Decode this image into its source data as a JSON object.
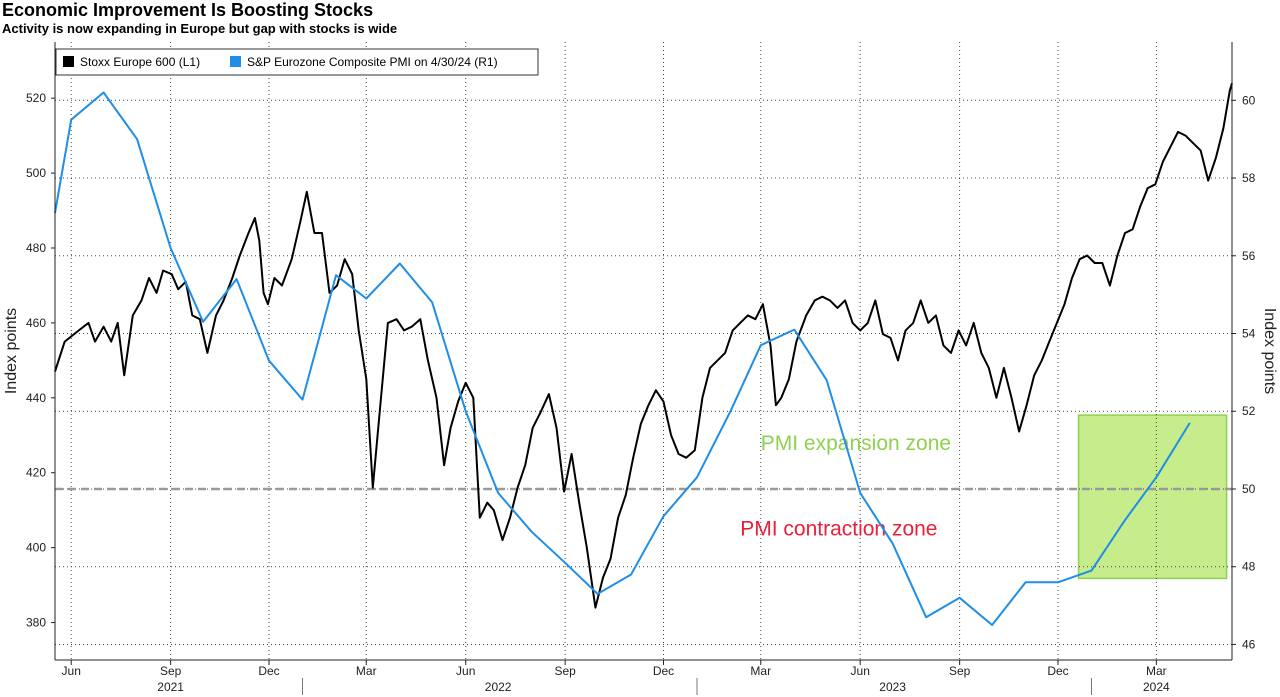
{
  "title": "Economic Improvement Is Boosting Stocks",
  "subtitle": "Activity is now expanding in Europe but gap with stocks is wide",
  "colors": {
    "stoxx": "#000000",
    "pmi": "#1f8ee6",
    "threshold": "#999999",
    "expansion_text": "#8fd14f",
    "contraction_text": "#e8203a",
    "zone_fill": "#c6ec8c",
    "zone_border": "#8fd14f"
  },
  "chart_data": {
    "type": "line",
    "legend_placement": "top-left",
    "grid": true,
    "x_range": [
      "2021-05-17",
      "2024-05-10"
    ],
    "x_ticks": [
      {
        "label": "Jun",
        "date": "2021-06-01"
      },
      {
        "label": "Sep",
        "date": "2021-09-01"
      },
      {
        "label": "Dec",
        "date": "2021-12-01"
      },
      {
        "label": "Mar",
        "date": "2022-03-01"
      },
      {
        "label": "Jun",
        "date": "2022-06-01"
      },
      {
        "label": "Sep",
        "date": "2022-09-01"
      },
      {
        "label": "Dec",
        "date": "2022-12-01"
      },
      {
        "label": "Mar",
        "date": "2023-03-01"
      },
      {
        "label": "Jun",
        "date": "2023-06-01"
      },
      {
        "label": "Sep",
        "date": "2023-09-01"
      },
      {
        "label": "Dec",
        "date": "2023-12-01"
      },
      {
        "label": "Mar",
        "date": "2024-03-01"
      }
    ],
    "x_years": [
      {
        "label": "2021",
        "date": "2021-09-01"
      },
      {
        "label": "2022",
        "date": "2022-07-01"
      },
      {
        "label": "2023",
        "date": "2023-07-01"
      },
      {
        "label": "2024",
        "date": "2024-03-01"
      }
    ],
    "year_dividers": [
      "2022-01-01",
      "2023-01-01",
      "2024-01-01"
    ],
    "y_left": {
      "label": "Index points",
      "range": [
        370,
        535
      ],
      "ticks": [
        380,
        400,
        420,
        440,
        460,
        480,
        500,
        520
      ]
    },
    "y_right": {
      "label": "Index points",
      "range": [
        45.6,
        61.5
      ],
      "ticks": [
        46,
        48,
        50,
        52,
        54,
        56,
        58,
        60
      ]
    },
    "threshold": {
      "axis": "right",
      "value": 50
    },
    "annotations": [
      {
        "text": "PMI expansion zone",
        "date": "2023-03-01",
        "value": 51,
        "kind": "expansion"
      },
      {
        "text": "PMI contraction zone",
        "date": "2023-02-10",
        "value": 48.8,
        "kind": "contraction"
      }
    ],
    "highlight_box": {
      "axis": "right",
      "x_from": "2023-12-20",
      "x_to": "2024-05-05",
      "y_from": 47.7,
      "y_to": 51.9
    },
    "series": [
      {
        "name": "Stoxx Europe 600 (L1)",
        "axis": "left",
        "points": [
          [
            "2021-05-17",
            447
          ],
          [
            "2021-05-26",
            455
          ],
          [
            "2021-06-08",
            458
          ],
          [
            "2021-06-17",
            460
          ],
          [
            "2021-06-23",
            455
          ],
          [
            "2021-07-01",
            459
          ],
          [
            "2021-07-08",
            455
          ],
          [
            "2021-07-14",
            460
          ],
          [
            "2021-07-20",
            446
          ],
          [
            "2021-07-28",
            462
          ],
          [
            "2021-08-05",
            466
          ],
          [
            "2021-08-12",
            472
          ],
          [
            "2021-08-19",
            468
          ],
          [
            "2021-08-25",
            474
          ],
          [
            "2021-09-02",
            473
          ],
          [
            "2021-09-08",
            469
          ],
          [
            "2021-09-15",
            471
          ],
          [
            "2021-09-21",
            462
          ],
          [
            "2021-09-28",
            461
          ],
          [
            "2021-10-05",
            452
          ],
          [
            "2021-10-13",
            462
          ],
          [
            "2021-10-20",
            466
          ],
          [
            "2021-10-28",
            472
          ],
          [
            "2021-11-04",
            478
          ],
          [
            "2021-11-12",
            484
          ],
          [
            "2021-11-18",
            488
          ],
          [
            "2021-11-22",
            482
          ],
          [
            "2021-11-26",
            468
          ],
          [
            "2021-11-30",
            465
          ],
          [
            "2021-12-06",
            472
          ],
          [
            "2021-12-13",
            470
          ],
          [
            "2021-12-22",
            477
          ],
          [
            "2021-12-30",
            487
          ],
          [
            "2022-01-05",
            495
          ],
          [
            "2022-01-12",
            484
          ],
          [
            "2022-01-19",
            484
          ],
          [
            "2022-01-26",
            468
          ],
          [
            "2022-02-02",
            470
          ],
          [
            "2022-02-09",
            477
          ],
          [
            "2022-02-16",
            473
          ],
          [
            "2022-02-22",
            458
          ],
          [
            "2022-03-01",
            445
          ],
          [
            "2022-03-07",
            416
          ],
          [
            "2022-03-14",
            438
          ],
          [
            "2022-03-21",
            460
          ],
          [
            "2022-03-29",
            461
          ],
          [
            "2022-04-05",
            458
          ],
          [
            "2022-04-12",
            459
          ],
          [
            "2022-04-20",
            461
          ],
          [
            "2022-04-27",
            450
          ],
          [
            "2022-05-05",
            440
          ],
          [
            "2022-05-12",
            422
          ],
          [
            "2022-05-18",
            432
          ],
          [
            "2022-05-25",
            439
          ],
          [
            "2022-06-01",
            444
          ],
          [
            "2022-06-08",
            440
          ],
          [
            "2022-06-14",
            408
          ],
          [
            "2022-06-21",
            412
          ],
          [
            "2022-06-27",
            410
          ],
          [
            "2022-07-05",
            402
          ],
          [
            "2022-07-12",
            408
          ],
          [
            "2022-07-19",
            416
          ],
          [
            "2022-07-26",
            422
          ],
          [
            "2022-08-02",
            432
          ],
          [
            "2022-08-09",
            436
          ],
          [
            "2022-08-17",
            441
          ],
          [
            "2022-08-24",
            432
          ],
          [
            "2022-08-31",
            415
          ],
          [
            "2022-09-07",
            425
          ],
          [
            "2022-09-14",
            412
          ],
          [
            "2022-09-21",
            400
          ],
          [
            "2022-09-29",
            384
          ],
          [
            "2022-10-06",
            392
          ],
          [
            "2022-10-13",
            397
          ],
          [
            "2022-10-20",
            408
          ],
          [
            "2022-10-27",
            414
          ],
          [
            "2022-11-03",
            424
          ],
          [
            "2022-11-10",
            433
          ],
          [
            "2022-11-17",
            438
          ],
          [
            "2022-11-24",
            442
          ],
          [
            "2022-12-01",
            439
          ],
          [
            "2022-12-08",
            430
          ],
          [
            "2022-12-15",
            425
          ],
          [
            "2022-12-22",
            424
          ],
          [
            "2022-12-30",
            426
          ],
          [
            "2023-01-06",
            440
          ],
          [
            "2023-01-13",
            448
          ],
          [
            "2023-01-20",
            450
          ],
          [
            "2023-01-27",
            452
          ],
          [
            "2023-02-03",
            458
          ],
          [
            "2023-02-10",
            460
          ],
          [
            "2023-02-17",
            462
          ],
          [
            "2023-02-24",
            461
          ],
          [
            "2023-03-03",
            465
          ],
          [
            "2023-03-10",
            454
          ],
          [
            "2023-03-15",
            438
          ],
          [
            "2023-03-20",
            440
          ],
          [
            "2023-03-27",
            445
          ],
          [
            "2023-04-03",
            455
          ],
          [
            "2023-04-12",
            462
          ],
          [
            "2023-04-20",
            466
          ],
          [
            "2023-04-27",
            467
          ],
          [
            "2023-05-04",
            466
          ],
          [
            "2023-05-11",
            464
          ],
          [
            "2023-05-18",
            466
          ],
          [
            "2023-05-25",
            460
          ],
          [
            "2023-06-01",
            458
          ],
          [
            "2023-06-08",
            460
          ],
          [
            "2023-06-15",
            466
          ],
          [
            "2023-06-22",
            457
          ],
          [
            "2023-06-29",
            456
          ],
          [
            "2023-07-06",
            450
          ],
          [
            "2023-07-13",
            458
          ],
          [
            "2023-07-20",
            460
          ],
          [
            "2023-07-27",
            466
          ],
          [
            "2023-08-03",
            460
          ],
          [
            "2023-08-10",
            462
          ],
          [
            "2023-08-17",
            454
          ],
          [
            "2023-08-24",
            452
          ],
          [
            "2023-08-31",
            458
          ],
          [
            "2023-09-07",
            454
          ],
          [
            "2023-09-14",
            460
          ],
          [
            "2023-09-21",
            452
          ],
          [
            "2023-09-28",
            448
          ],
          [
            "2023-10-05",
            440
          ],
          [
            "2023-10-12",
            448
          ],
          [
            "2023-10-19",
            440
          ],
          [
            "2023-10-26",
            431
          ],
          [
            "2023-11-02",
            438
          ],
          [
            "2023-11-09",
            446
          ],
          [
            "2023-11-16",
            450
          ],
          [
            "2023-11-23",
            455
          ],
          [
            "2023-11-30",
            460
          ],
          [
            "2023-12-07",
            465
          ],
          [
            "2023-12-14",
            472
          ],
          [
            "2023-12-21",
            477
          ],
          [
            "2023-12-28",
            478
          ],
          [
            "2024-01-04",
            476
          ],
          [
            "2024-01-11",
            476
          ],
          [
            "2024-01-18",
            470
          ],
          [
            "2024-01-25",
            478
          ],
          [
            "2024-02-01",
            484
          ],
          [
            "2024-02-08",
            485
          ],
          [
            "2024-02-15",
            491
          ],
          [
            "2024-02-22",
            496
          ],
          [
            "2024-02-29",
            497
          ],
          [
            "2024-03-07",
            503
          ],
          [
            "2024-03-14",
            507
          ],
          [
            "2024-03-21",
            511
          ],
          [
            "2024-03-28",
            510
          ],
          [
            "2024-04-04",
            508
          ],
          [
            "2024-04-11",
            506
          ],
          [
            "2024-04-18",
            498
          ],
          [
            "2024-04-25",
            504
          ],
          [
            "2024-05-02",
            512
          ],
          [
            "2024-05-08",
            522
          ],
          [
            "2024-05-10",
            524
          ]
        ]
      },
      {
        "name": "S&P Eurozone Composite PMI on 4/30/24 (R1)",
        "axis": "right",
        "points": [
          [
            "2021-05-17",
            57.1
          ],
          [
            "2021-06-01",
            59.5
          ],
          [
            "2021-07-01",
            60.2
          ],
          [
            "2021-08-01",
            59.0
          ],
          [
            "2021-09-01",
            56.2
          ],
          [
            "2021-10-01",
            54.3
          ],
          [
            "2021-11-01",
            55.4
          ],
          [
            "2021-12-01",
            53.3
          ],
          [
            "2022-01-01",
            52.3
          ],
          [
            "2022-02-01",
            55.5
          ],
          [
            "2022-03-01",
            54.9
          ],
          [
            "2022-04-01",
            55.8
          ],
          [
            "2022-05-01",
            54.8
          ],
          [
            "2022-06-01",
            52.0
          ],
          [
            "2022-07-01",
            49.9
          ],
          [
            "2022-08-01",
            48.9
          ],
          [
            "2022-09-01",
            48.1
          ],
          [
            "2022-10-01",
            47.3
          ],
          [
            "2022-11-01",
            47.8
          ],
          [
            "2022-12-01",
            49.3
          ],
          [
            "2023-01-01",
            50.3
          ],
          [
            "2023-02-01",
            52.0
          ],
          [
            "2023-03-01",
            53.7
          ],
          [
            "2023-04-01",
            54.1
          ],
          [
            "2023-05-01",
            52.8
          ],
          [
            "2023-06-01",
            49.9
          ],
          [
            "2023-07-01",
            48.6
          ],
          [
            "2023-08-01",
            46.7
          ],
          [
            "2023-09-01",
            47.2
          ],
          [
            "2023-10-01",
            46.5
          ],
          [
            "2023-11-01",
            47.6
          ],
          [
            "2023-12-01",
            47.6
          ],
          [
            "2024-01-01",
            47.9
          ],
          [
            "2024-02-01",
            49.2
          ],
          [
            "2024-03-01",
            50.3
          ],
          [
            "2024-04-01",
            51.7
          ]
        ]
      }
    ]
  }
}
